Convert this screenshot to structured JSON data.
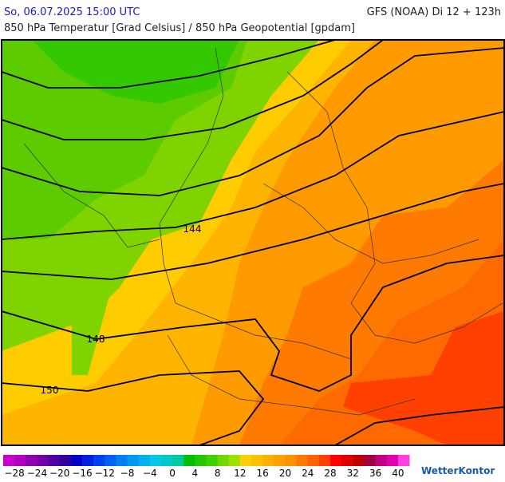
{
  "header": {
    "date": "So, 06.07.2025 15:00 UTC",
    "model": "GFS (NOAA) Di 12 + 123h",
    "subtitle": "850 hPa Temperatur [Grad Celsius] / 850 hPa Geopotential [gpdam]"
  },
  "contour_labels": [
    "144",
    "148",
    "150"
  ],
  "legend": {
    "colors": [
      "#cc00cc",
      "#b000c0",
      "#9000b0",
      "#7000a8",
      "#5000a0",
      "#3000a0",
      "#0000c8",
      "#0020e0",
      "#0040f0",
      "#0060f0",
      "#0080f0",
      "#0098f0",
      "#00b0f0",
      "#00c8e8",
      "#00c8c8",
      "#00c8a0",
      "#00c000",
      "#20c800",
      "#40d000",
      "#70d800",
      "#a0e000",
      "#ffd000",
      "#ffc000",
      "#ffb000",
      "#ffa000",
      "#ff9000",
      "#ff7800",
      "#ff6000",
      "#ff4000",
      "#ff0000",
      "#e00000",
      "#c00000",
      "#a00040",
      "#c00080",
      "#e000b0",
      "#ff40e0"
    ],
    "ticks": [
      "−28",
      "−24",
      "−20",
      "−16",
      "−12",
      "−8",
      "−4",
      "0",
      "4",
      "8",
      "12",
      "16",
      "20",
      "24",
      "28",
      "32",
      "36",
      "40"
    ]
  },
  "brand": "WetterKontor"
}
